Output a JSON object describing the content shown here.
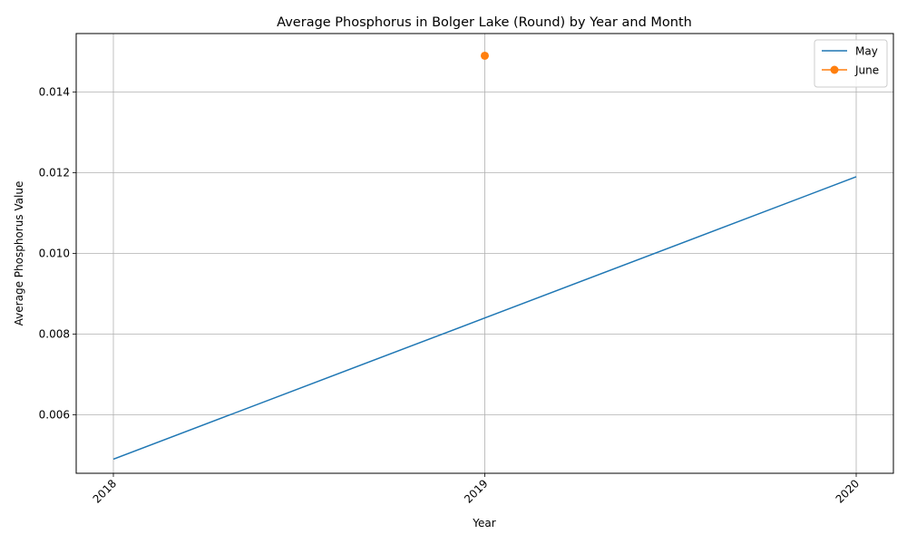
{
  "chart_data": {
    "type": "line",
    "title": "Average Phosphorus in Bolger Lake (Round) by Year and Month",
    "xlabel": "Year",
    "ylabel": "Average Phosphorus Value",
    "categories": [
      "2018",
      "2019",
      "2020"
    ],
    "x_ticks": [
      "2018",
      "2019",
      "2020"
    ],
    "y_ticks": [
      "0.006",
      "0.008",
      "0.010",
      "0.012",
      "0.014"
    ],
    "ylim": [
      0.00455,
      0.01545
    ],
    "grid": true,
    "legend_position": "top-right",
    "series": [
      {
        "name": "May",
        "color": "#1f77b4",
        "marker": "none",
        "values": [
          0.0049,
          0.0084,
          0.0119
        ]
      },
      {
        "name": "June",
        "color": "#ff7f0e",
        "marker": "circle",
        "values": [
          null,
          0.0149,
          null
        ]
      }
    ]
  }
}
